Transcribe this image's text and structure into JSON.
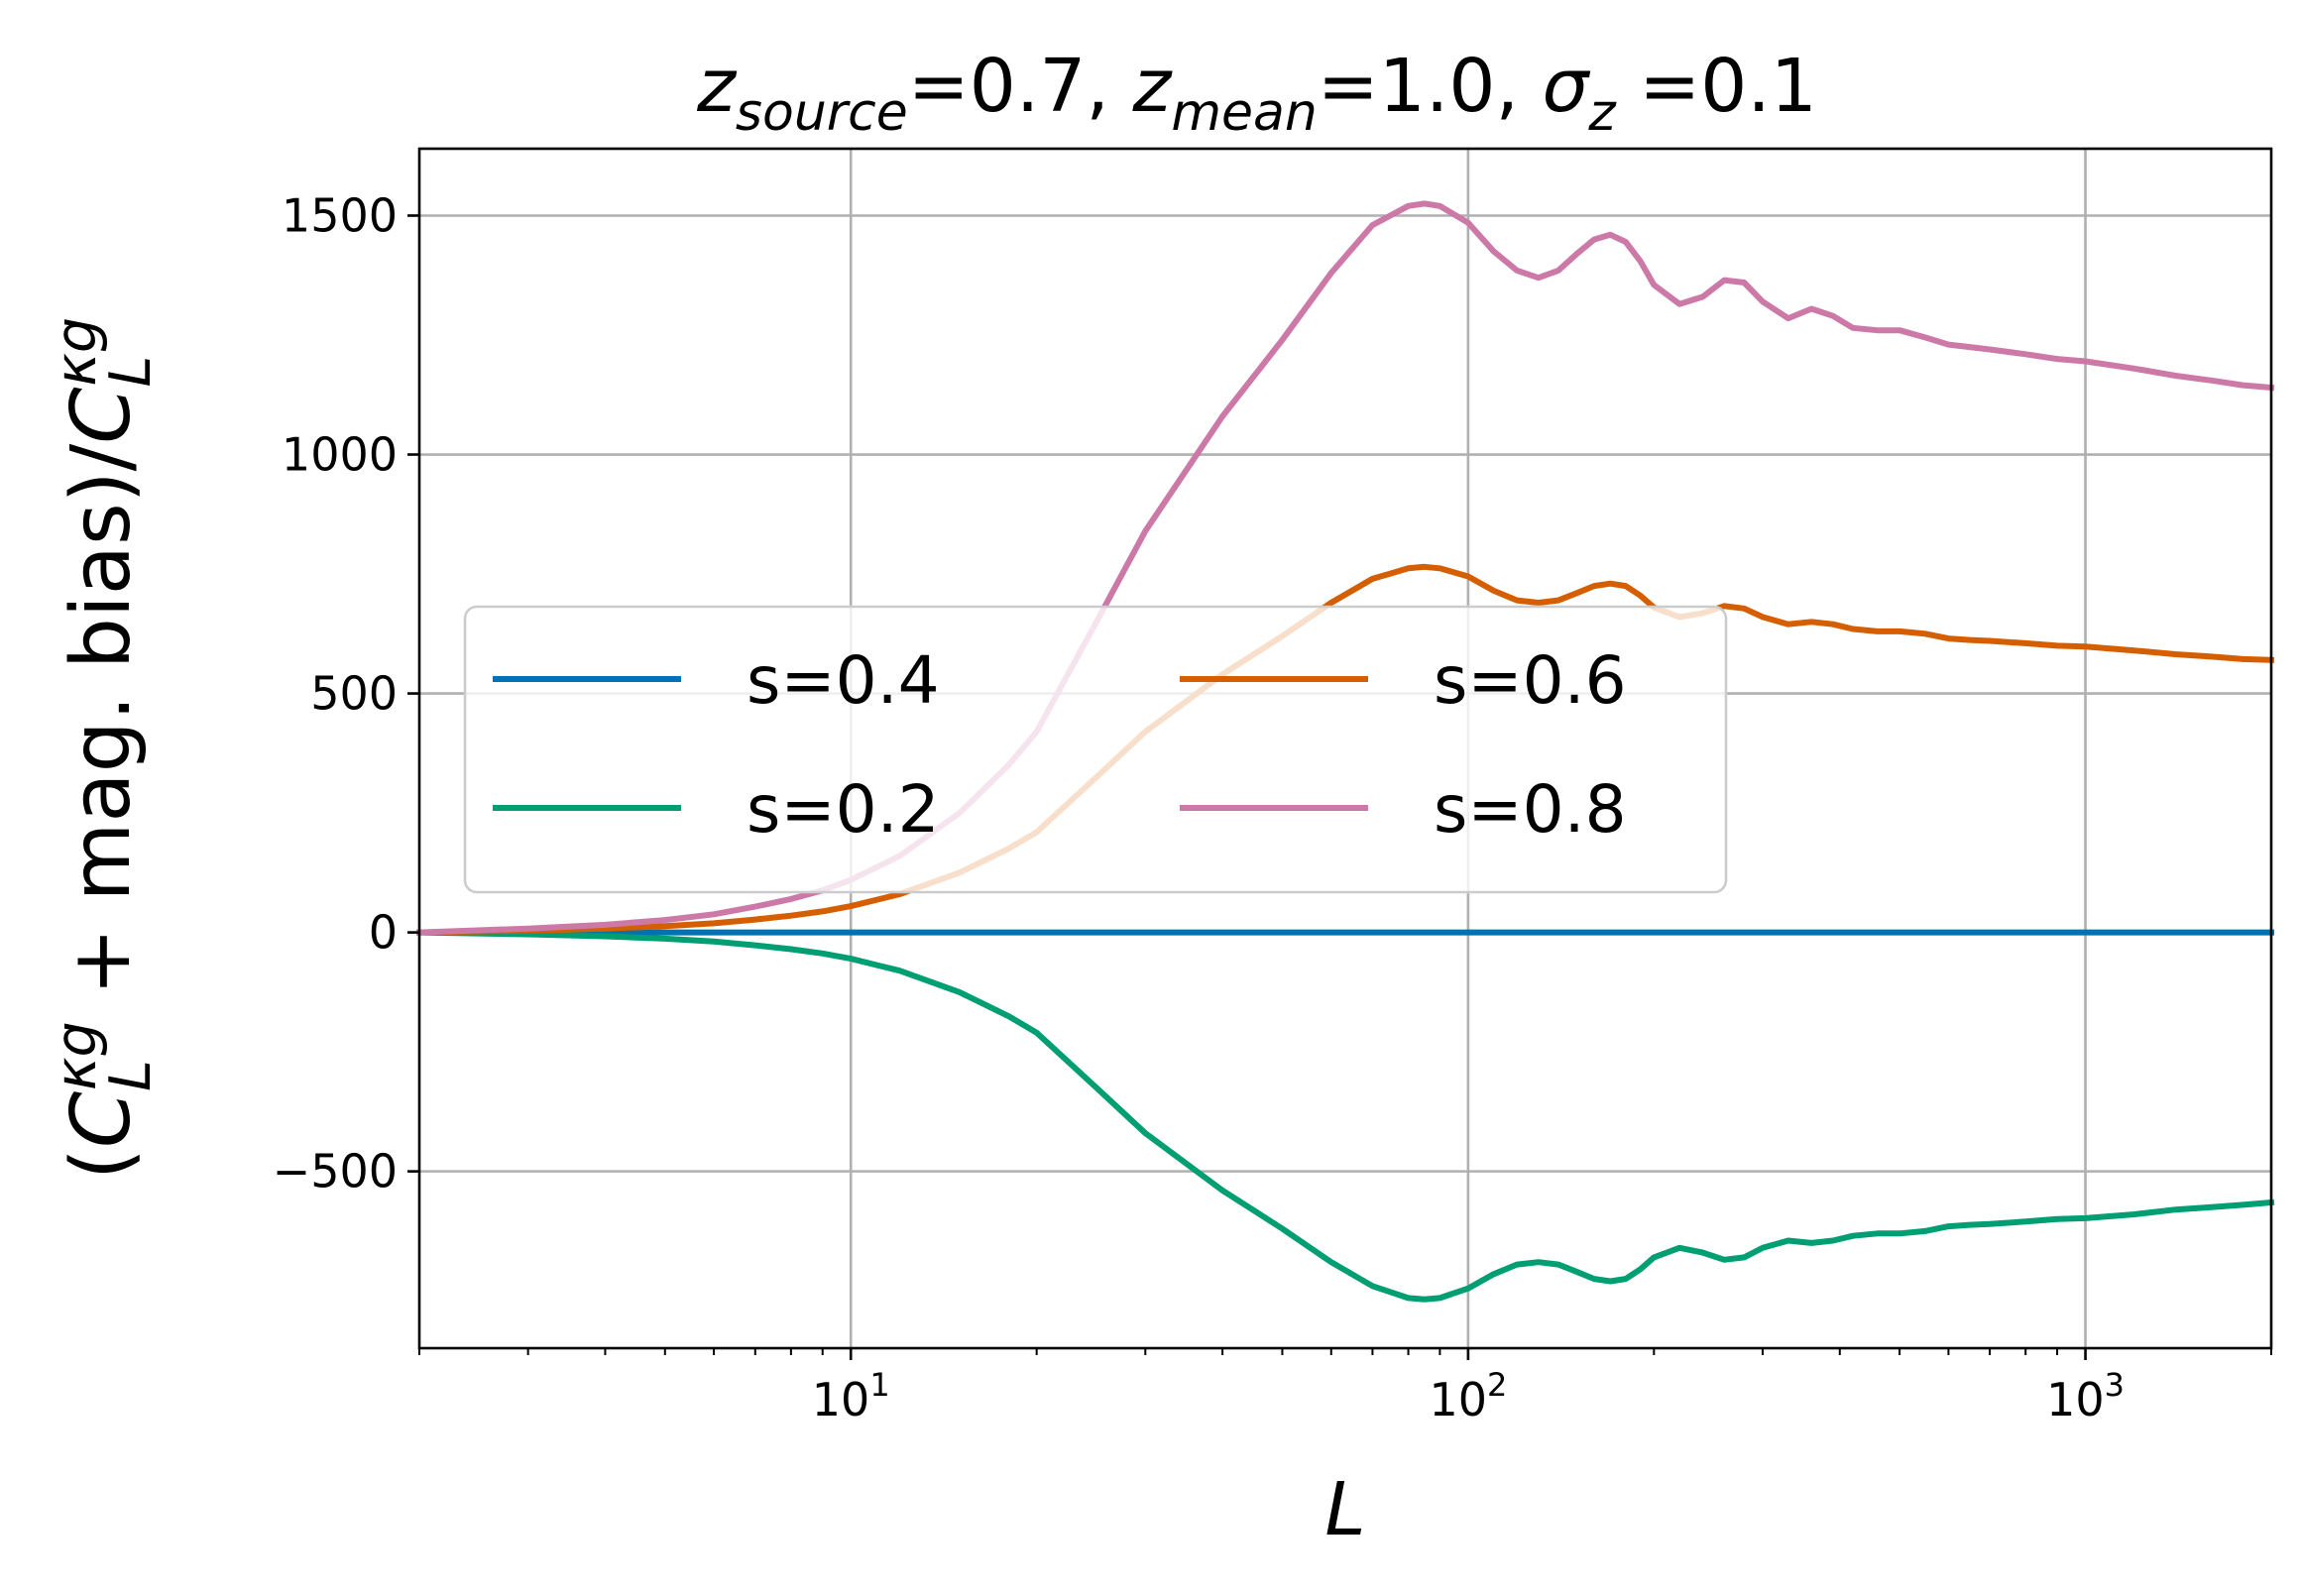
{
  "chart_data": {
    "type": "line",
    "title": {
      "parts": [
        {
          "text": "z",
          "italic": true
        },
        {
          "text": "source",
          "italic": true,
          "sub": true
        },
        {
          "text": "=0.7, "
        },
        {
          "text": "z",
          "italic": true
        },
        {
          "text": "mean",
          "italic": true,
          "sub": true
        },
        {
          "text": "=1.0, "
        },
        {
          "text": "σ",
          "italic": true
        },
        {
          "text": "z",
          "italic": true,
          "sub": true
        },
        {
          "text": " =0.1"
        }
      ]
    },
    "xlabel": "L",
    "ylabel": {
      "parts": [
        {
          "text": "("
        },
        {
          "text": "C",
          "italic": true
        },
        {
          "text": "L",
          "italic": true,
          "sub": true
        },
        {
          "text": "κg",
          "italic": true,
          "sup": true
        },
        {
          "text": " + mag. bias)/"
        },
        {
          "text": "C",
          "italic": true
        },
        {
          "text": "L",
          "italic": true,
          "sub": true
        },
        {
          "text": "κg",
          "italic": true,
          "sup": true
        }
      ]
    },
    "x_scale": "log",
    "xlim": [
      2,
      2000
    ],
    "ylim": [
      -870,
      1640
    ],
    "x_ticks": [
      {
        "value": 10,
        "base": "10",
        "exp": "1"
      },
      {
        "value": 100,
        "base": "10",
        "exp": "2"
      },
      {
        "value": 1000,
        "base": "10",
        "exp": "3"
      }
    ],
    "y_ticks": [
      {
        "value": 1500,
        "label": "1500"
      },
      {
        "value": 1000,
        "label": "1000"
      },
      {
        "value": 500,
        "label": "500"
      },
      {
        "value": 0,
        "label": "0"
      },
      {
        "value": -500,
        "label": "−500"
      }
    ],
    "grid": true,
    "legend": {
      "placement": "center-left",
      "columns": 2
    },
    "series": [
      {
        "name": "s=0.4",
        "color": "#0072b2",
        "x": [
          2,
          10,
          100,
          1000,
          2000
        ],
        "y": [
          0,
          0,
          0,
          0,
          0
        ]
      },
      {
        "name": "s=0.2",
        "color": "#009e73",
        "x": [
          2,
          3,
          4,
          5,
          6,
          7,
          8,
          9,
          10,
          12,
          15,
          18,
          20,
          25,
          30,
          40,
          50,
          60,
          70,
          80,
          85,
          90,
          100,
          110,
          120,
          130,
          140,
          150,
          160,
          170,
          180,
          190,
          200,
          220,
          240,
          260,
          280,
          300,
          330,
          360,
          390,
          420,
          460,
          500,
          550,
          600,
          650,
          700,
          800,
          900,
          1000,
          1200,
          1400,
          1600,
          1800,
          2000
        ],
        "y": [
          0,
          -4,
          -8,
          -13,
          -19,
          -27,
          -35,
          -44,
          -55,
          -80,
          -125,
          -175,
          -210,
          -325,
          -420,
          -540,
          -620,
          -690,
          -740,
          -765,
          -768,
          -765,
          -745,
          -715,
          -695,
          -690,
          -695,
          -710,
          -725,
          -730,
          -725,
          -705,
          -680,
          -660,
          -670,
          -685,
          -680,
          -660,
          -645,
          -650,
          -645,
          -635,
          -630,
          -630,
          -625,
          -615,
          -612,
          -610,
          -605,
          -600,
          -598,
          -590,
          -580,
          -575,
          -570,
          -565
        ]
      },
      {
        "name": "s=0.6",
        "color": "#d55e00",
        "x": [
          2,
          3,
          4,
          5,
          6,
          7,
          8,
          9,
          10,
          12,
          15,
          18,
          20,
          25,
          30,
          40,
          50,
          60,
          70,
          80,
          85,
          90,
          100,
          110,
          120,
          130,
          140,
          150,
          160,
          170,
          180,
          190,
          200,
          220,
          240,
          260,
          280,
          300,
          330,
          360,
          390,
          420,
          460,
          500,
          550,
          600,
          650,
          700,
          800,
          900,
          1000,
          1200,
          1400,
          1600,
          1800,
          2000
        ],
        "y": [
          0,
          4,
          8,
          13,
          19,
          27,
          35,
          44,
          55,
          80,
          125,
          175,
          210,
          325,
          420,
          540,
          620,
          690,
          740,
          762,
          765,
          762,
          745,
          715,
          695,
          690,
          695,
          710,
          725,
          730,
          725,
          705,
          680,
          660,
          668,
          683,
          678,
          660,
          645,
          650,
          645,
          635,
          630,
          630,
          625,
          615,
          612,
          610,
          605,
          600,
          598,
          590,
          582,
          577,
          572,
          570
        ]
      },
      {
        "name": "s=0.8",
        "color": "#cc79a7",
        "x": [
          2,
          3,
          4,
          5,
          6,
          7,
          8,
          9,
          10,
          12,
          15,
          18,
          20,
          25,
          30,
          40,
          50,
          60,
          70,
          80,
          85,
          90,
          100,
          110,
          120,
          130,
          140,
          150,
          160,
          170,
          180,
          190,
          200,
          220,
          240,
          260,
          280,
          300,
          330,
          360,
          390,
          420,
          460,
          500,
          550,
          600,
          650,
          700,
          800,
          900,
          1000,
          1200,
          1400,
          1600,
          1800,
          2000
        ],
        "y": [
          0,
          8,
          16,
          26,
          38,
          54,
          70,
          88,
          110,
          160,
          250,
          350,
          420,
          650,
          840,
          1080,
          1240,
          1380,
          1480,
          1520,
          1525,
          1520,
          1485,
          1425,
          1385,
          1370,
          1385,
          1420,
          1450,
          1460,
          1445,
          1405,
          1355,
          1315,
          1330,
          1365,
          1360,
          1320,
          1285,
          1305,
          1290,
          1265,
          1260,
          1260,
          1245,
          1230,
          1225,
          1220,
          1210,
          1200,
          1195,
          1180,
          1165,
          1155,
          1145,
          1140
        ]
      }
    ]
  }
}
